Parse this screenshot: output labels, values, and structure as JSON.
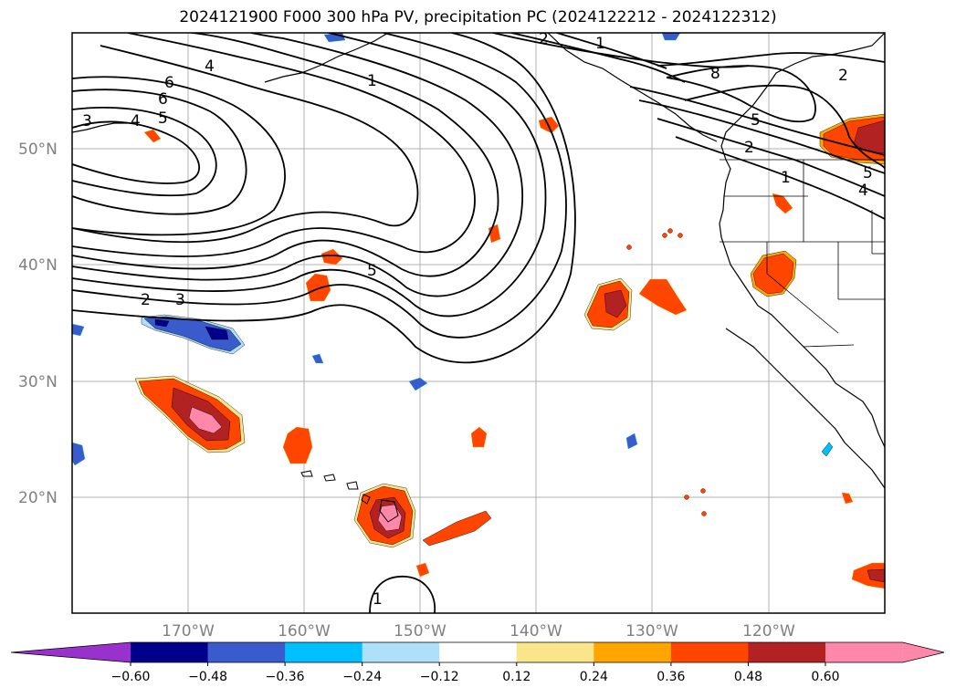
{
  "title": "2024121900 F000 300 hPa PV, precipitation PC (2024122212 - 2024122312)",
  "map": {
    "projection": "PlateCarree",
    "lon_range": [
      -180,
      -110
    ],
    "lat_range": [
      10,
      60
    ],
    "gridlines": true,
    "coastlines": true,
    "state_borders": true,
    "lat_ticks": [
      {
        "value": 50,
        "label": "50°N"
      },
      {
        "value": 40,
        "label": "40°N"
      },
      {
        "value": 30,
        "label": "30°N"
      },
      {
        "value": 20,
        "label": "20°N"
      }
    ],
    "lon_ticks": [
      {
        "value": -170,
        "label": "170°W"
      },
      {
        "value": -160,
        "label": "160°W"
      },
      {
        "value": -150,
        "label": "150°W"
      },
      {
        "value": -140,
        "label": "140°W"
      },
      {
        "value": -130,
        "label": "130°W"
      },
      {
        "value": -120,
        "label": "120°W"
      }
    ]
  },
  "pv_contours": {
    "variable": "300 hPa PV",
    "labels": [
      "4",
      "6",
      "6",
      "5",
      "4",
      "3",
      "1",
      "2",
      "3",
      "5",
      "2",
      "1",
      "8",
      "5",
      "2",
      "2",
      "1",
      "5",
      "4",
      "1"
    ]
  },
  "colorbar": {
    "extend": "both",
    "ticks": [
      "−0.60",
      "−0.48",
      "−0.36",
      "−0.24",
      "−0.12",
      "0.12",
      "0.24",
      "0.36",
      "0.48",
      "0.60"
    ],
    "bins": [
      {
        "range": "< -0.60",
        "color": "#9932cc"
      },
      {
        "range": "-0.60 to -0.48",
        "color": "#00008b"
      },
      {
        "range": "-0.48 to -0.36",
        "color": "#3a5bcb"
      },
      {
        "range": "-0.36 to -0.24",
        "color": "#00bfff"
      },
      {
        "range": "-0.24 to -0.12",
        "color": "#aee1f9"
      },
      {
        "range": "-0.12 to 0.12",
        "color": "#ffffff"
      },
      {
        "range": "0.12 to 0.24",
        "color": "#fbe58a"
      },
      {
        "range": "0.24 to 0.36",
        "color": "#ffa500"
      },
      {
        "range": "0.36 to 0.48",
        "color": "#ff4500"
      },
      {
        "range": "0.48 to 0.60",
        "color": "#b22222"
      },
      {
        "range": "> 0.60",
        "color": "#ff88aa"
      }
    ]
  }
}
